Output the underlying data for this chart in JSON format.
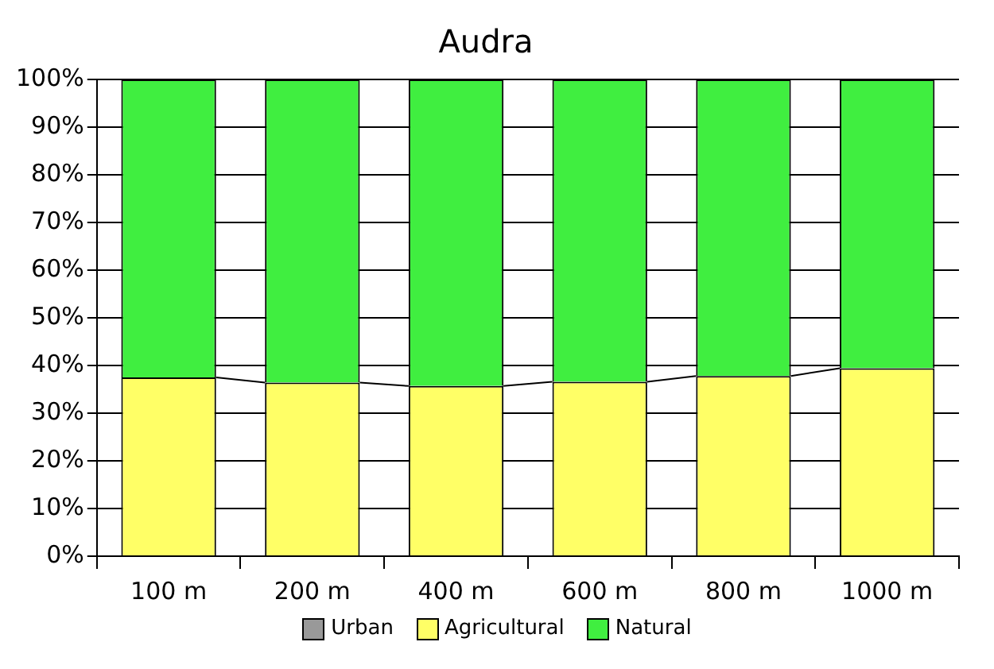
{
  "chart_data": {
    "type": "bar",
    "title": "Audra",
    "stacked": true,
    "categories": [
      "100 m",
      "200 m",
      "400 m",
      "600 m",
      "800 m",
      "1000 m"
    ],
    "series": [
      {
        "name": "Urban",
        "color": "#999999",
        "values": [
          0,
          0,
          0,
          0,
          0,
          0
        ]
      },
      {
        "name": "Agricultural",
        "color": "#ffff66",
        "values": [
          37.5,
          36.4,
          35.7,
          36.6,
          37.8,
          39.4
        ]
      },
      {
        "name": "Natural",
        "color": "#40ee40",
        "values": [
          62.5,
          63.6,
          64.3,
          63.4,
          62.2,
          60.6
        ]
      }
    ],
    "ylim": [
      0,
      100
    ],
    "yticks": [
      {
        "value": 0,
        "label": "0%"
      },
      {
        "value": 10,
        "label": "10%"
      },
      {
        "value": 20,
        "label": "20%"
      },
      {
        "value": 30,
        "label": "30%"
      },
      {
        "value": 40,
        "label": "40%"
      },
      {
        "value": 50,
        "label": "50%"
      },
      {
        "value": 60,
        "label": "60%"
      },
      {
        "value": 70,
        "label": "70%"
      },
      {
        "value": 80,
        "label": "80%"
      },
      {
        "value": 90,
        "label": "90%"
      },
      {
        "value": 100,
        "label": "100%"
      }
    ],
    "grid": "y",
    "legend": "bottom"
  }
}
